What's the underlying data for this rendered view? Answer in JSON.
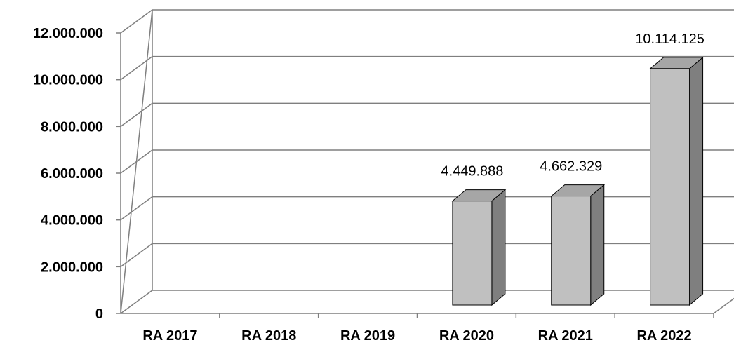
{
  "chart_data": {
    "type": "bar",
    "title": "",
    "xlabel": "",
    "ylabel": "",
    "categories": [
      "RA 2017",
      "RA 2018",
      "RA 2019",
      "RA 2020",
      "RA 2021",
      "RA 2022"
    ],
    "values": [
      null,
      null,
      null,
      4449888,
      4662329,
      10114125
    ],
    "value_labels": [
      "",
      "",
      "",
      "4.449.888",
      "4.662.329",
      "10.114.125"
    ],
    "ylim": [
      0,
      12000000
    ],
    "y_ticks": [
      0,
      2000000,
      4000000,
      6000000,
      8000000,
      10000000,
      12000000
    ],
    "y_tick_labels": [
      "0",
      "2.000.000",
      "4.000.000",
      "6.000.000",
      "8.000.000",
      "10.000.000",
      "12.000.000"
    ],
    "grid": true,
    "style": "3d-column",
    "colors": {
      "front": "#c0c0c0",
      "top": "#a6a6a6",
      "side": "#7f7f7f",
      "grid": "#7f7f7f"
    }
  }
}
